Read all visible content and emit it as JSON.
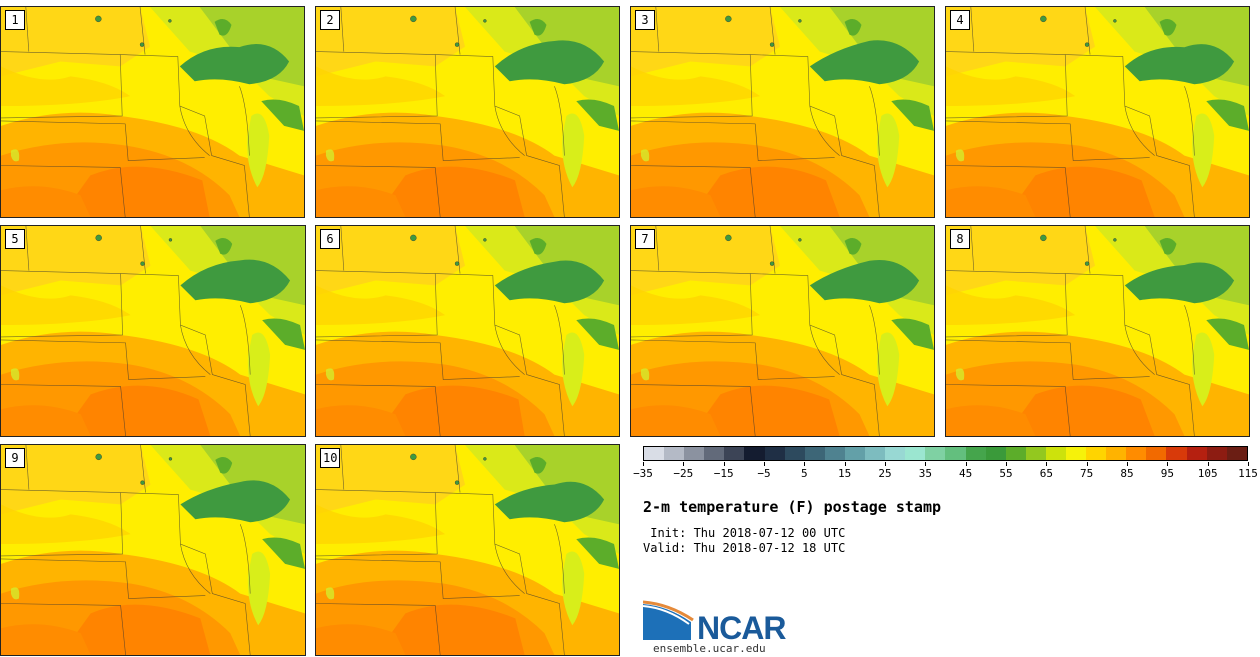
{
  "panels": [
    {
      "label": "1"
    },
    {
      "label": "2"
    },
    {
      "label": "3"
    },
    {
      "label": "4"
    },
    {
      "label": "5"
    },
    {
      "label": "6"
    },
    {
      "label": "7"
    },
    {
      "label": "8"
    },
    {
      "label": "9"
    },
    {
      "label": "10"
    }
  ],
  "colorbar": {
    "colors": [
      "#d9dde6",
      "#b4bac6",
      "#8b92a0",
      "#626a7a",
      "#3c4456",
      "#141c30",
      "#1f2f45",
      "#2d4a5e",
      "#3d6677",
      "#4f8290",
      "#63a0a8",
      "#7dbcbf",
      "#98d8d3",
      "#9be6d0",
      "#7fd1a3",
      "#63bf7e",
      "#45a54c",
      "#3a9a3a",
      "#5cad2a",
      "#93c81f",
      "#cde20c",
      "#f6f20a",
      "#ffd400",
      "#ffb300",
      "#ff8c00",
      "#f26a00",
      "#d83a0a",
      "#b52010",
      "#8d1c12",
      "#6b1e14"
    ],
    "tick_labels": [
      "−35",
      "−25",
      "−15",
      "−5",
      "5",
      "15",
      "25",
      "35",
      "45",
      "55",
      "65",
      "75",
      "85",
      "95",
      "105",
      "115"
    ]
  },
  "title": "2-m temperature (F) postage stamp",
  "init": " Init: Thu 2018-07-12 00 UTC",
  "valid": "Valid: Thu 2018-07-12 18 UTC",
  "logo_text": "NCAR",
  "site": "ensemble.ucar.edu"
}
